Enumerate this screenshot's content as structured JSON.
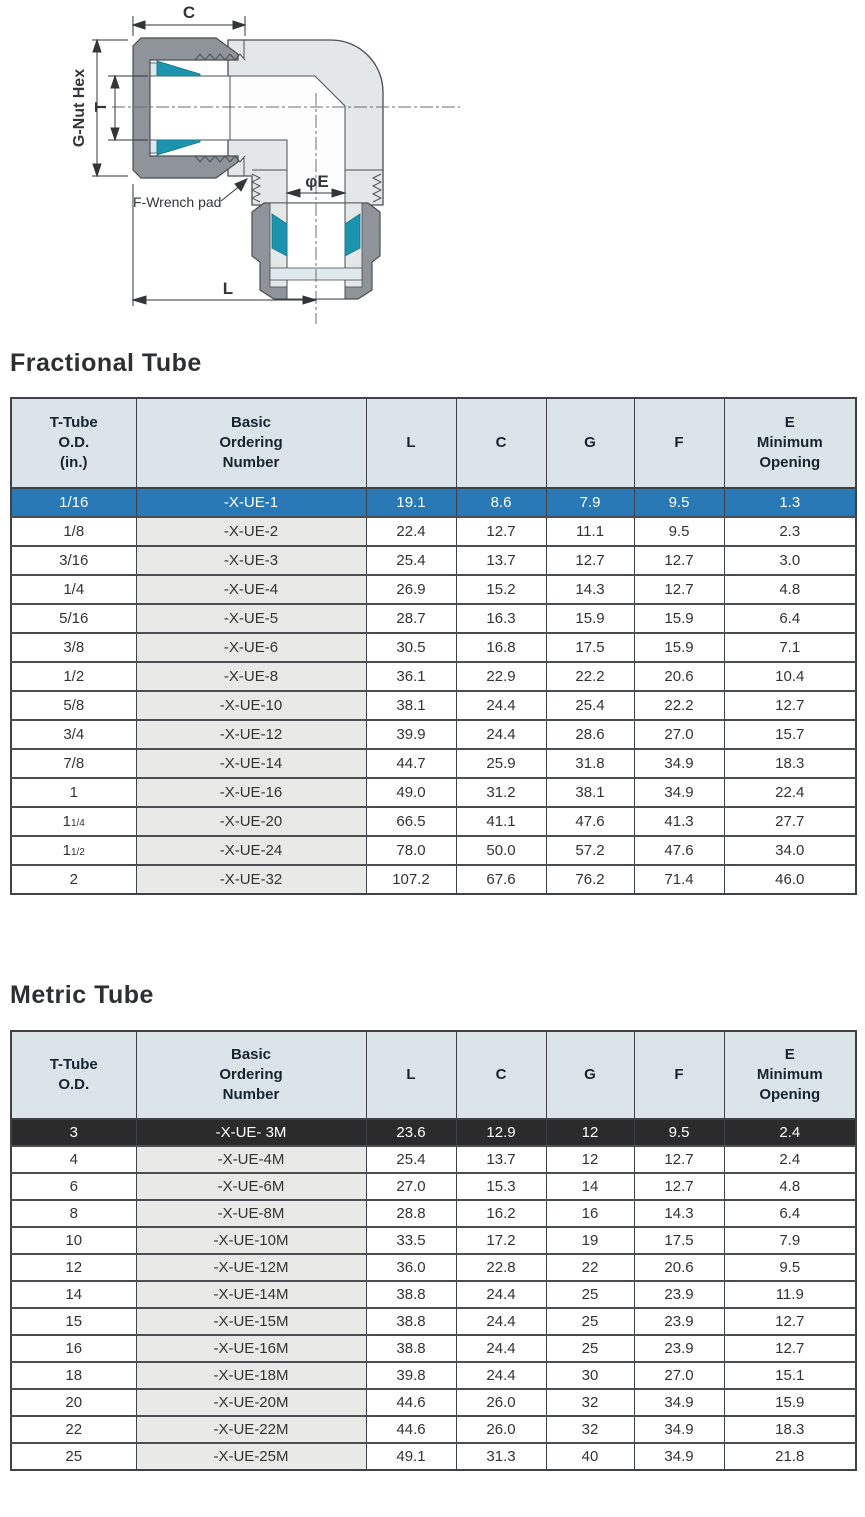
{
  "diagram": {
    "labels": {
      "c": "C",
      "g_nut_hex": "G-Nut Hex",
      "t": "T",
      "f_wrench_pad": "F-Wrench pad",
      "phi_e": "φE",
      "l": "L"
    },
    "colors": {
      "nut_gray": "#8e9499",
      "body_gray": "#e4e7e8",
      "ferrule_teal": "#1d94ae",
      "back_ferrule_blue": "#d9eaf1"
    }
  },
  "fractional": {
    "heading": "Fractional Tube",
    "columns": [
      "T-Tube\nO.D.\n(in.)",
      "Basic\nOrdering\nNumber",
      "L",
      "C",
      "G",
      "F",
      "E\nMinimum\nOpening"
    ],
    "rows": [
      {
        "highlight": "blue",
        "cells": [
          "1/16",
          "-X-UE-1",
          "19.1",
          "8.6",
          "7.9",
          "9.5",
          "1.3"
        ]
      },
      {
        "cells": [
          "1/8",
          "-X-UE-2",
          "22.4",
          "12.7",
          "11.1",
          "9.5",
          "2.3"
        ]
      },
      {
        "cells": [
          "3/16",
          "-X-UE-3",
          "25.4",
          "13.7",
          "12.7",
          "12.7",
          "3.0"
        ]
      },
      {
        "cells": [
          "1/4",
          "-X-UE-4",
          "26.9",
          "15.2",
          "14.3",
          "12.7",
          "4.8"
        ]
      },
      {
        "cells": [
          "5/16",
          "-X-UE-5",
          "28.7",
          "16.3",
          "15.9",
          "15.9",
          "6.4"
        ]
      },
      {
        "cells": [
          "3/8",
          "-X-UE-6",
          "30.5",
          "16.8",
          "17.5",
          "15.9",
          "7.1"
        ]
      },
      {
        "cells": [
          "1/2",
          "-X-UE-8",
          "36.1",
          "22.9",
          "22.2",
          "20.6",
          "10.4"
        ]
      },
      {
        "cells": [
          "5/8",
          "-X-UE-10",
          "38.1",
          "24.4",
          "25.4",
          "22.2",
          "12.7"
        ]
      },
      {
        "cells": [
          "3/4",
          "-X-UE-12",
          "39.9",
          "24.4",
          "28.6",
          "27.0",
          "15.7"
        ]
      },
      {
        "cells": [
          "7/8",
          "-X-UE-14",
          "44.7",
          "25.9",
          "31.8",
          "34.9",
          "18.3"
        ]
      },
      {
        "cells": [
          "1",
          "-X-UE-16",
          "49.0",
          "31.2",
          "38.1",
          "34.9",
          "22.4"
        ]
      },
      {
        "cells": [
          {
            "main": "1",
            "frac": "1/4"
          },
          "-X-UE-20",
          "66.5",
          "41.1",
          "47.6",
          "41.3",
          "27.7"
        ]
      },
      {
        "cells": [
          {
            "main": "1",
            "frac": "1/2"
          },
          "-X-UE-24",
          "78.0",
          "50.0",
          "57.2",
          "47.6",
          "34.0"
        ]
      },
      {
        "cells": [
          "2",
          "-X-UE-32",
          "107.2",
          "67.6",
          "76.2",
          "71.4",
          "46.0"
        ]
      }
    ]
  },
  "metric": {
    "heading": "Metric Tube",
    "columns": [
      "T-Tube\nO.D.",
      "Basic\nOrdering\nNumber",
      "L",
      "C",
      "G",
      "F",
      "E\nMinimum\nOpening"
    ],
    "rows": [
      {
        "highlight": "dark",
        "cells": [
          "3",
          "-X-UE- 3M",
          "23.6",
          "12.9",
          "12",
          "9.5",
          "2.4"
        ]
      },
      {
        "cells": [
          "4",
          "-X-UE-4M",
          "25.4",
          "13.7",
          "12",
          "12.7",
          "2.4"
        ]
      },
      {
        "cells": [
          "6",
          "-X-UE-6M",
          "27.0",
          "15.3",
          "14",
          "12.7",
          "4.8"
        ]
      },
      {
        "cells": [
          "8",
          "-X-UE-8M",
          "28.8",
          "16.2",
          "16",
          "14.3",
          "6.4"
        ]
      },
      {
        "cells": [
          "10",
          "-X-UE-10M",
          "33.5",
          "17.2",
          "19",
          "17.5",
          "7.9"
        ]
      },
      {
        "cells": [
          "12",
          "-X-UE-12M",
          "36.0",
          "22.8",
          "22",
          "20.6",
          "9.5"
        ]
      },
      {
        "cells": [
          "14",
          "-X-UE-14M",
          "38.8",
          "24.4",
          "25",
          "23.9",
          "11.9"
        ]
      },
      {
        "cells": [
          "15",
          "-X-UE-15M",
          "38.8",
          "24.4",
          "25",
          "23.9",
          "12.7"
        ]
      },
      {
        "cells": [
          "16",
          "-X-UE-16M",
          "38.8",
          "24.4",
          "25",
          "23.9",
          "12.7"
        ]
      },
      {
        "cells": [
          "18",
          "-X-UE-18M",
          "39.8",
          "24.4",
          "30",
          "27.0",
          "15.1"
        ]
      },
      {
        "cells": [
          "20",
          "-X-UE-20M",
          "44.6",
          "26.0",
          "32",
          "34.9",
          "15.9"
        ]
      },
      {
        "cells": [
          "22",
          "-X-UE-22M",
          "44.6",
          "26.0",
          "32",
          "34.9",
          "18.3"
        ]
      },
      {
        "cells": [
          "25",
          "-X-UE-25M",
          "49.1",
          "31.3",
          "40",
          "34.9",
          "21.8"
        ]
      }
    ]
  }
}
